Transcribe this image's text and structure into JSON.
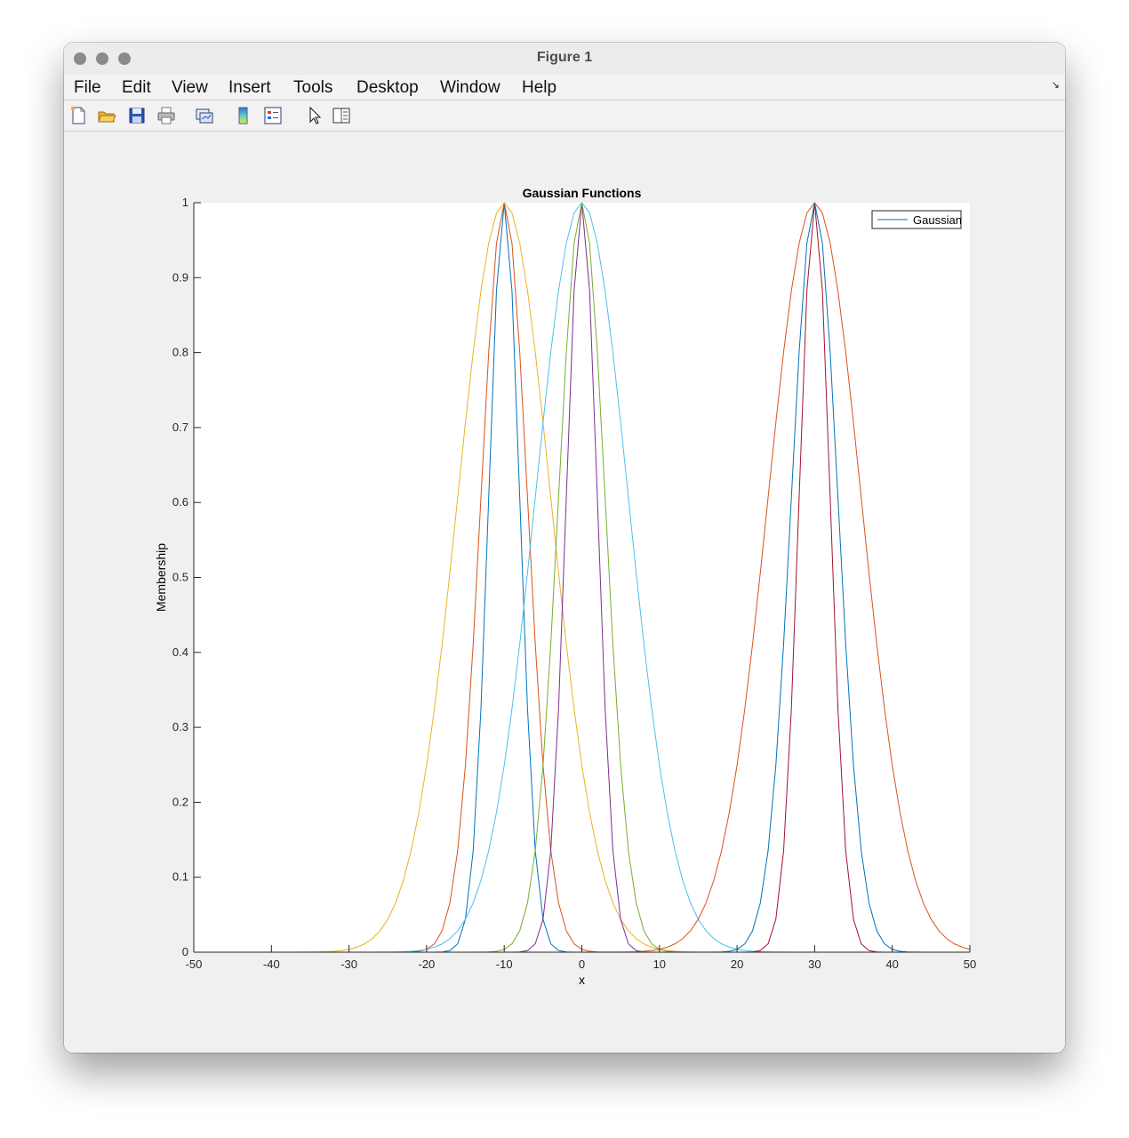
{
  "window": {
    "title": "Figure 1"
  },
  "menubar": {
    "items": [
      "File",
      "Edit",
      "View",
      "Insert",
      "Tools",
      "Desktop",
      "Window",
      "Help"
    ]
  },
  "toolbar": {
    "icons": [
      "new-figure-icon",
      "open-file-icon",
      "save-icon",
      "print-icon",
      "link-plot-icon",
      "insert-colorbar-icon",
      "insert-legend-icon",
      "edit-plot-cursor-icon",
      "property-inspector-icon"
    ]
  },
  "chart_data": {
    "type": "line",
    "title": "Gaussian Functions",
    "xlabel": "x",
    "ylabel": "Membership",
    "xlim": [
      -50,
      50
    ],
    "ylim": [
      0,
      1
    ],
    "xticks": [
      "-50",
      "-40",
      "-30",
      "-20",
      "-10",
      "0",
      "10",
      "20",
      "30",
      "40",
      "50"
    ],
    "yticks": [
      "0",
      "0.1",
      "0.2",
      "0.3",
      "0.4",
      "0.5",
      "0.6",
      "0.7",
      "0.8",
      "0.9",
      "1"
    ],
    "grid": false,
    "legend": {
      "position": "top-right",
      "entries": [
        "Gaussian"
      ]
    },
    "series": [
      {
        "name": "Gaussian",
        "mean": -10,
        "sigma": 2,
        "color": "#0072bd"
      },
      {
        "mean": -10,
        "sigma": 3,
        "color": "#d95319"
      },
      {
        "mean": -10,
        "sigma": 6,
        "color": "#edb120"
      },
      {
        "mean": 0,
        "sigma": 2,
        "color": "#7e2f8e"
      },
      {
        "mean": 0,
        "sigma": 3,
        "color": "#77ac30"
      },
      {
        "mean": 0,
        "sigma": 6,
        "color": "#4dbeee"
      },
      {
        "mean": 30,
        "sigma": 2,
        "color": "#a2142f"
      },
      {
        "mean": 30,
        "sigma": 3,
        "color": "#0072bd"
      },
      {
        "mean": 30,
        "sigma": 6,
        "color": "#d95319"
      }
    ]
  }
}
